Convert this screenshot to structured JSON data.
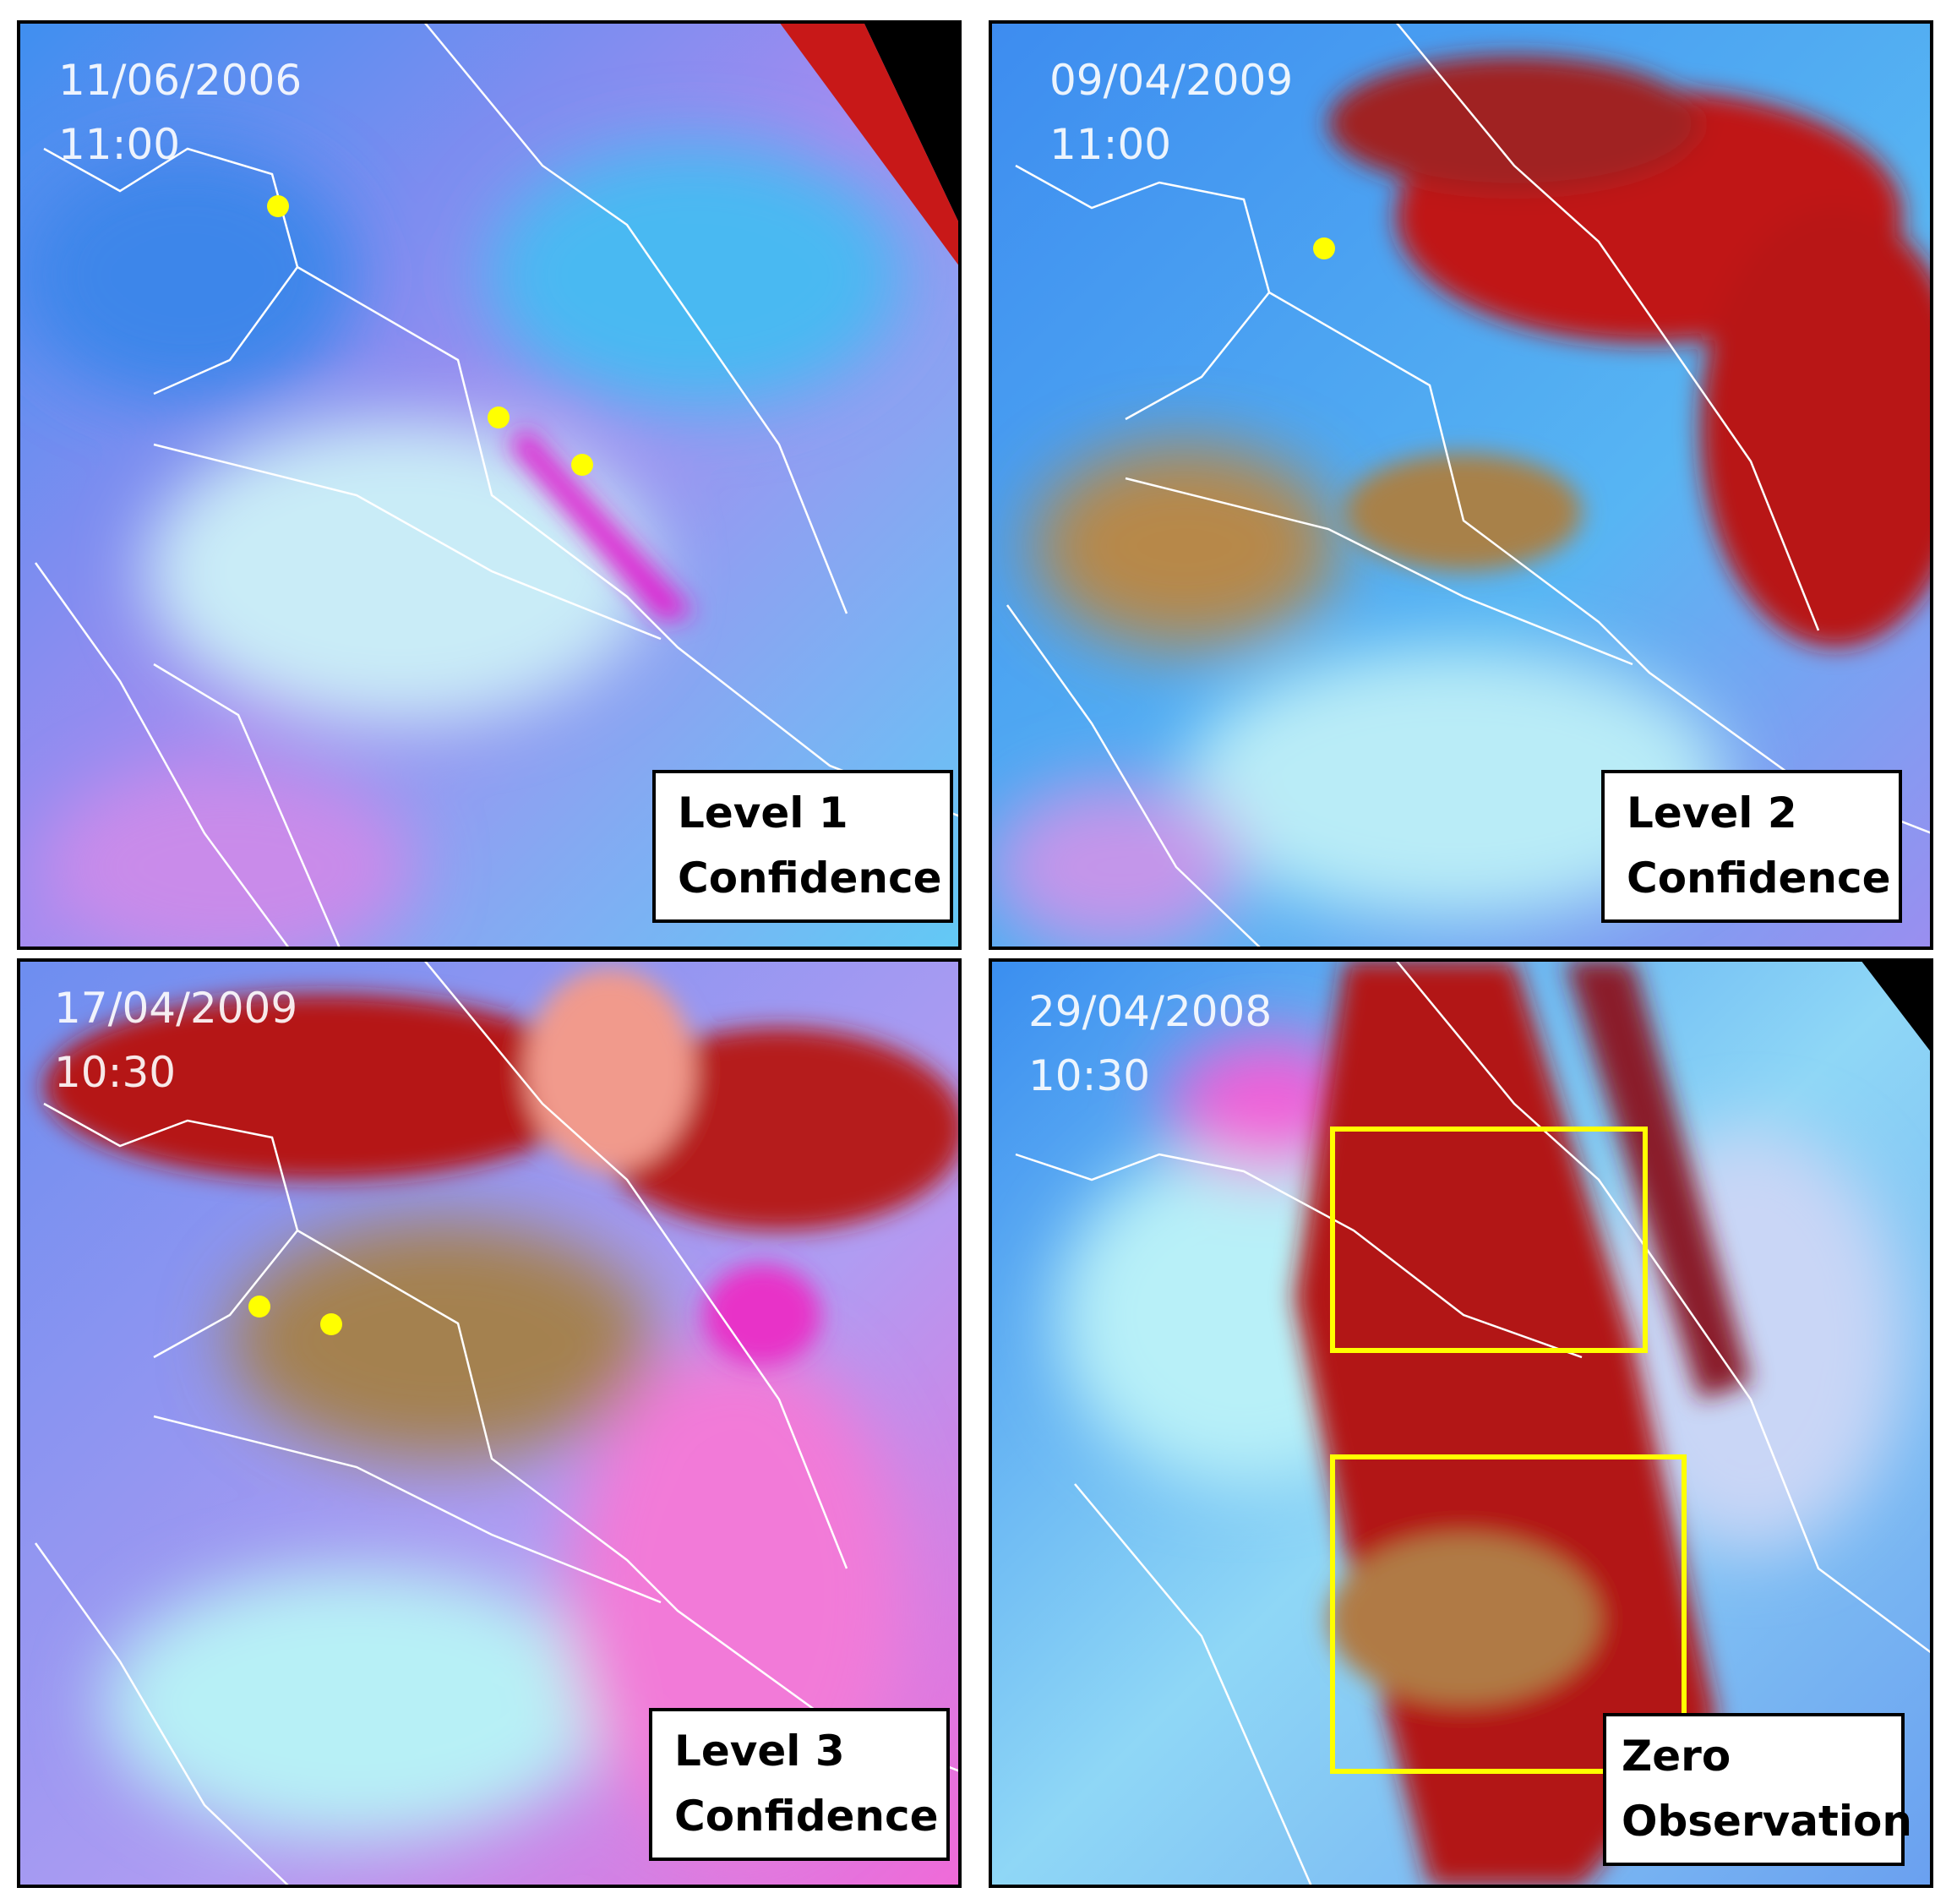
{
  "panels": [
    {
      "date": "11/06/2006",
      "time": "11:00",
      "label": [
        "Level 1",
        "Confidence"
      ]
    },
    {
      "date": "09/04/2009",
      "time": "11:00",
      "label": [
        "Level 2",
        "Confidence"
      ]
    },
    {
      "date": "17/04/2009",
      "time": "10:30",
      "label": [
        "Level 3",
        "Confidence"
      ]
    },
    {
      "date": "29/04/2008",
      "time": "10:30",
      "label": [
        "Zero",
        "Observation"
      ]
    }
  ]
}
